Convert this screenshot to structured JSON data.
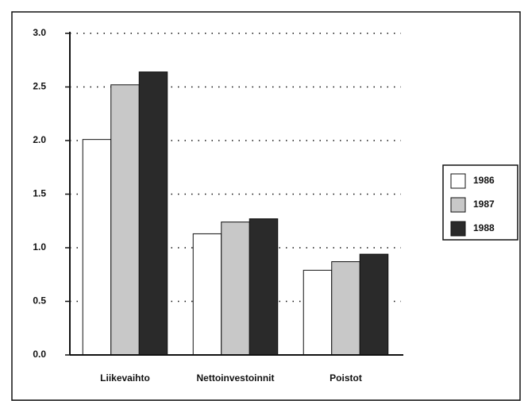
{
  "chart_data": {
    "type": "bar",
    "categories": [
      "Liikevaihto",
      "Nettoinvestoinnit",
      "Poistot"
    ],
    "series": [
      {
        "name": "1986",
        "color": "#ffffff",
        "values": [
          2.01,
          1.13,
          0.79
        ]
      },
      {
        "name": "1987",
        "color": "#c8c8c8",
        "values": [
          2.52,
          1.24,
          0.87
        ]
      },
      {
        "name": "1988",
        "color": "#2a2a2a",
        "values": [
          2.64,
          1.27,
          0.94
        ]
      }
    ],
    "ylim": [
      0,
      3
    ],
    "yticks": [
      {
        "value": 0,
        "label": "0.0"
      },
      0.5,
      {
        "value": 1,
        "label": "1.0"
      },
      1.5,
      {
        "value": 2,
        "label": "2.0"
      },
      2.5,
      {
        "value": 3,
        "label": "3.0"
      }
    ],
    "grid": true,
    "legend": "right"
  }
}
